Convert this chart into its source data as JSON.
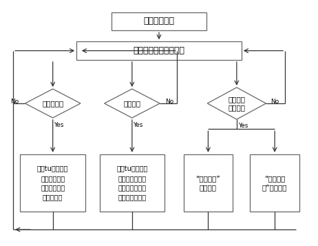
{
  "title_text": "站域后备保护",
  "recv_text": "接收、分配开关量信息",
  "d1_text": "断路器失灵",
  "d2_text": "死区故障",
  "d3_text": "故障识别\n启动条件",
  "box1_text": "延时tu范围内持\n续满足，则跳\n该断路器相邻\n所有断路器",
  "box2_text": "延时tu范围内持\n续满足，则跳开\n正方向阻抗元件\n启动侧的断路器",
  "box3_text": "“母线故障”\n判断模块",
  "box4_text": "“变压器故\n障”判断模块",
  "yes_text": "Yes",
  "no_text": "No",
  "bg_color": "#ffffff",
  "box_edge": "#666666",
  "arrow_color": "#333333",
  "font_size": 7.5,
  "title_font_size": 9.0,
  "lw": 0.9
}
